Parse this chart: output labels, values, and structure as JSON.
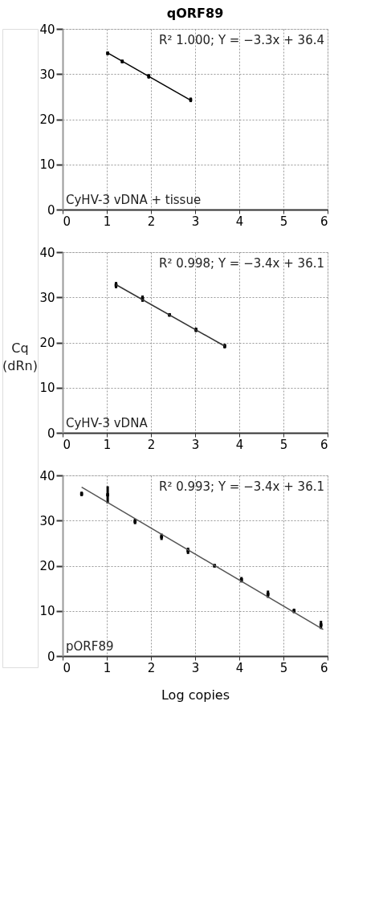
{
  "chart_data": [
    {
      "type": "scatter",
      "title": "qORF89",
      "xlim": [
        0,
        6
      ],
      "ylim": [
        0,
        40
      ],
      "xticks": [
        0,
        1,
        2,
        3,
        4,
        5,
        6
      ],
      "yticks": [
        0,
        10,
        20,
        30,
        40
      ],
      "grid": true,
      "annotations": [
        "R² 1.000; Y = −3.3x + 36.4",
        "CyHV-3 vDNA + tissue"
      ],
      "series": [
        {
          "marker": "square",
          "color": "#000000",
          "x": [
            1.02,
            1.35,
            1.95,
            2.9
          ],
          "values": [
            34.6,
            32.8,
            29.5,
            24.3
          ],
          "errors": [
            0.4,
            0.4,
            0.5,
            0.5
          ]
        },
        {
          "type": "line",
          "line_style": "solid",
          "color": "#000000",
          "x": [
            1.02,
            2.9
          ],
          "values": [
            34.7,
            24.2
          ]
        }
      ]
    },
    {
      "type": "scatter",
      "ylabel": "Cq (dRn)",
      "xlim": [
        0,
        6
      ],
      "ylim": [
        0,
        40
      ],
      "xticks": [
        0,
        1,
        2,
        3,
        4,
        5,
        6
      ],
      "yticks": [
        0,
        10,
        20,
        30,
        40
      ],
      "grid": true,
      "annotations": [
        "R² 0.998; Y = −3.4x + 36.1",
        "CyHV-3 vDNA"
      ],
      "series": [
        {
          "marker": "square",
          "color": "#000000",
          "x": [
            1.21,
            1.81,
            2.42,
            3.02,
            3.67
          ],
          "values": [
            32.7,
            29.7,
            26.1,
            22.8,
            19.2
          ],
          "errors": [
            0.7,
            0.7,
            0.4,
            0.5,
            0.5
          ]
        },
        {
          "type": "line",
          "line_style": "solid",
          "color": "#333333",
          "x": [
            1.21,
            3.67
          ],
          "values": [
            32.8,
            19.2
          ]
        }
      ]
    },
    {
      "type": "scatter",
      "xlabel": "Log copies",
      "xlim": [
        0,
        6
      ],
      "ylim": [
        0,
        40
      ],
      "xticks": [
        0,
        1,
        2,
        3,
        4,
        5,
        6
      ],
      "yticks": [
        0,
        10,
        20,
        30,
        40
      ],
      "grid": true,
      "annotations": [
        "R² 0.993; Y = −3.4x + 36.1",
        "pORF89"
      ],
      "series": [
        {
          "marker": "square",
          "color": "#000000",
          "x": [
            0.43,
            1.02,
            1.64,
            2.24,
            2.84,
            3.44,
            4.05,
            4.65,
            5.24,
            5.85
          ],
          "values": [
            35.9,
            35.7,
            29.8,
            26.4,
            23.3,
            20.0,
            16.9,
            13.7,
            10.0,
            6.9
          ],
          "errors": [
            0.5,
            [
              33.8,
              37.6
            ],
            0.6,
            0.7,
            0.7,
            0.4,
            0.6,
            0.8,
            0.5,
            0.9
          ]
        },
        {
          "type": "line",
          "line_style": "solid",
          "color": "#555555",
          "x": [
            0.43,
            5.9
          ],
          "values": [
            37.4,
            5.9
          ]
        }
      ]
    }
  ]
}
